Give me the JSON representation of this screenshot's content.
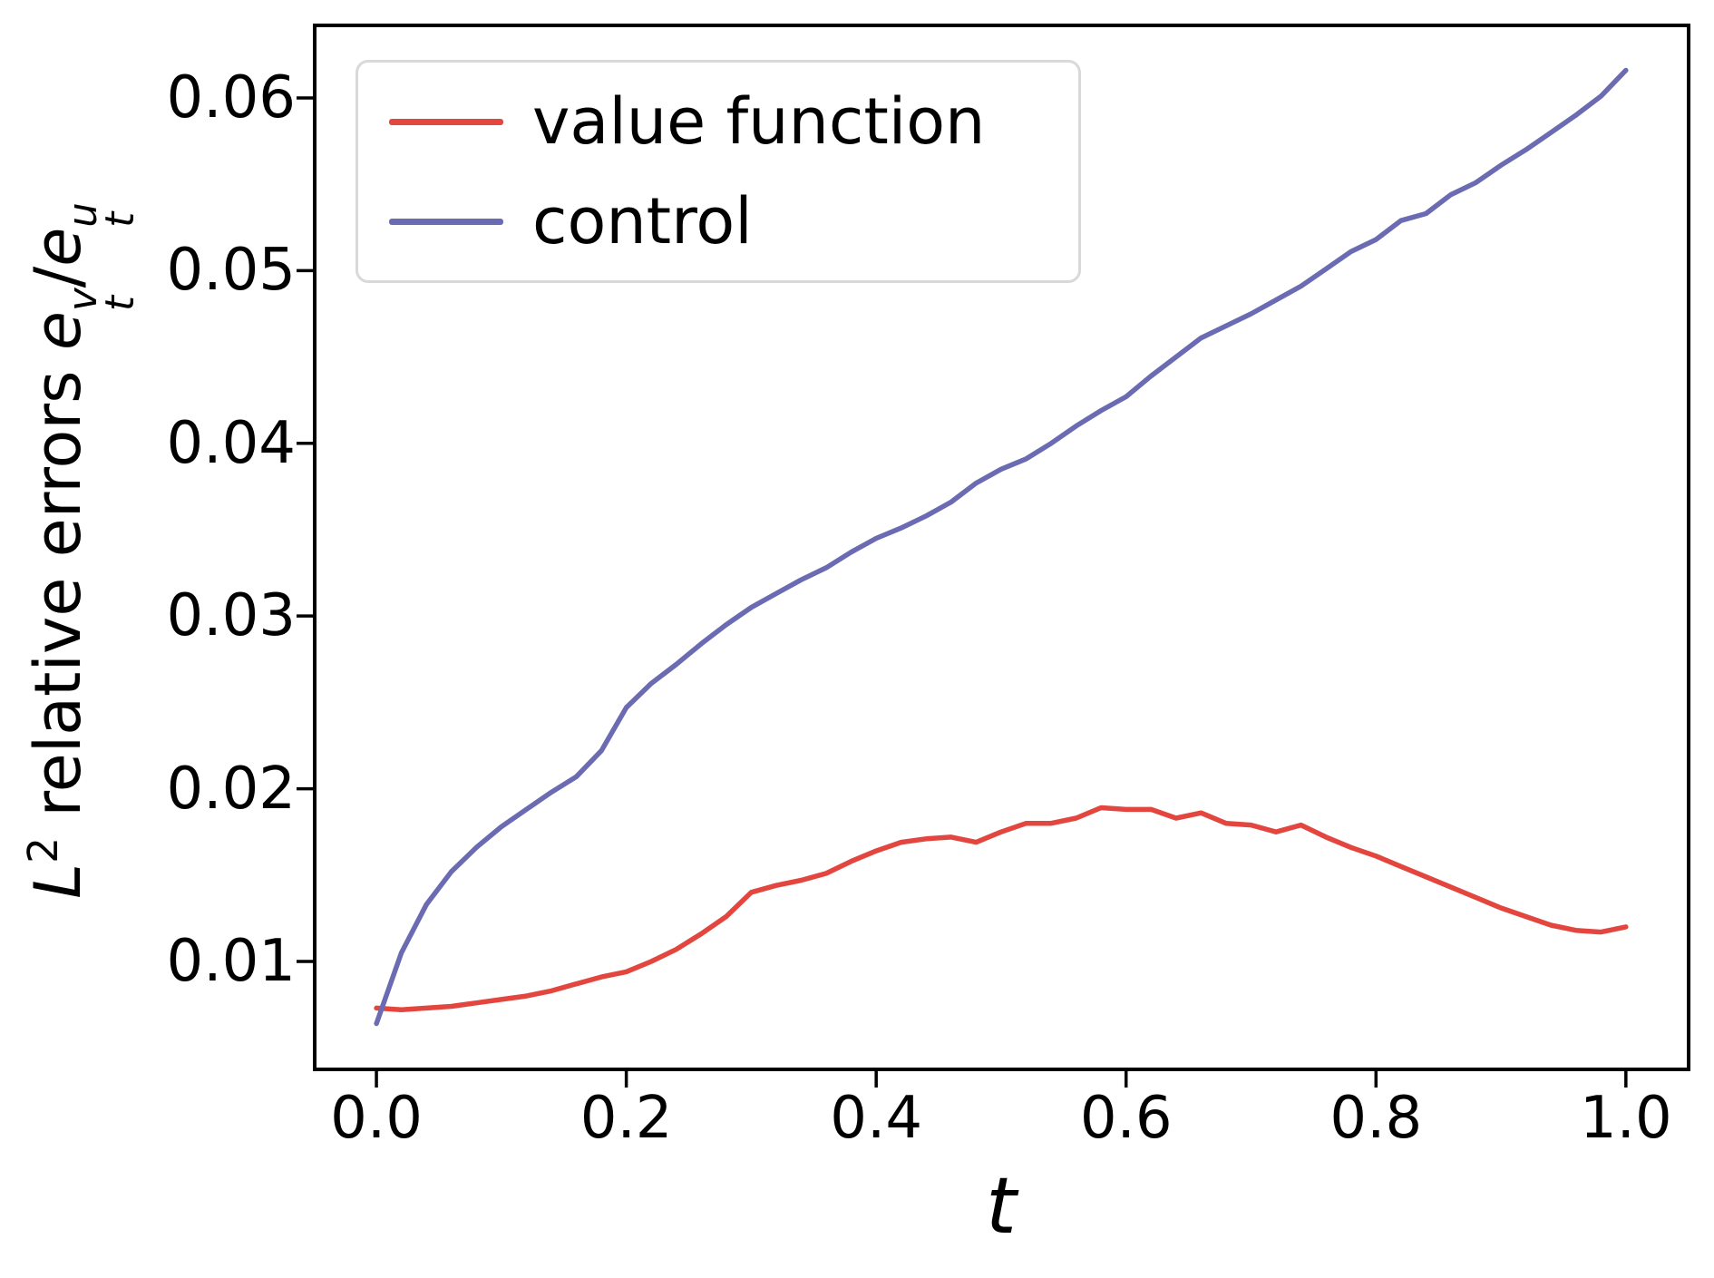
{
  "chart_data": {
    "type": "line",
    "title": "",
    "xlabel": "t",
    "ylabel": "L2 relative errors e_t^v/e_t^u",
    "ylabel_parts": {
      "L": "L",
      "exponent": "2",
      "words": " relative errors ",
      "e1": "e",
      "sup1": "v",
      "sub1": "t",
      "slash": "/",
      "e2": "e",
      "sup2": "u",
      "sub2": "t"
    },
    "xlim": [
      -0.0494,
      1.0502
    ],
    "ylim": [
      0.00375,
      0.0642
    ],
    "grid": false,
    "legend_position": "upper left",
    "xticks": [
      "0.0",
      "0.2",
      "0.4",
      "0.6",
      "0.8",
      "1.0"
    ],
    "xtick_values": [
      0.0,
      0.2,
      0.4,
      0.6,
      0.8,
      1.0
    ],
    "yticks": [
      "0.01",
      "0.02",
      "0.03",
      "0.04",
      "0.05",
      "0.06"
    ],
    "ytick_values": [
      0.01,
      0.02,
      0.03,
      0.04,
      0.05,
      0.06
    ],
    "x": [
      0.0,
      0.02,
      0.04,
      0.06,
      0.08,
      0.1,
      0.12,
      0.14,
      0.16,
      0.18,
      0.2,
      0.22,
      0.24,
      0.26,
      0.28,
      0.3,
      0.32,
      0.34,
      0.36,
      0.38,
      0.4,
      0.42,
      0.44,
      0.46,
      0.48,
      0.5,
      0.52,
      0.54,
      0.56,
      0.58,
      0.6,
      0.62,
      0.64,
      0.66,
      0.68,
      0.7,
      0.72,
      0.74,
      0.76,
      0.78,
      0.8,
      0.82,
      0.84,
      0.86,
      0.88,
      0.9,
      0.92,
      0.94,
      0.96,
      0.98,
      1.0
    ],
    "series": [
      {
        "name": "value function",
        "color": "#e2463f",
        "values": [
          0.0073,
          0.0072,
          0.0073,
          0.0074,
          0.0076,
          0.0078,
          0.008,
          0.0083,
          0.0087,
          0.0091,
          0.0094,
          0.01,
          0.0107,
          0.0116,
          0.0126,
          0.014,
          0.0144,
          0.0147,
          0.0151,
          0.0158,
          0.0164,
          0.0169,
          0.0171,
          0.0172,
          0.0169,
          0.0175,
          0.018,
          0.018,
          0.0183,
          0.0189,
          0.0188,
          0.0188,
          0.0183,
          0.0186,
          0.018,
          0.0179,
          0.0175,
          0.0179,
          0.0172,
          0.0166,
          0.0161,
          0.0155,
          0.0149,
          0.0143,
          0.0137,
          0.0131,
          0.0126,
          0.0121,
          0.0118,
          0.0117,
          0.012
        ]
      },
      {
        "name": "control",
        "color": "#6a6bb2",
        "values": [
          0.0064,
          0.0105,
          0.0133,
          0.0152,
          0.0166,
          0.0178,
          0.0188,
          0.0198,
          0.0207,
          0.0222,
          0.0247,
          0.0261,
          0.0272,
          0.0284,
          0.0295,
          0.0305,
          0.0313,
          0.0321,
          0.0328,
          0.0337,
          0.0345,
          0.0351,
          0.0358,
          0.0366,
          0.0377,
          0.0385,
          0.0391,
          0.04,
          0.041,
          0.0419,
          0.0427,
          0.0439,
          0.045,
          0.0461,
          0.0468,
          0.0475,
          0.0483,
          0.0491,
          0.0501,
          0.0511,
          0.0518,
          0.0529,
          0.0533,
          0.0544,
          0.0551,
          0.0561,
          0.057,
          0.058,
          0.059,
          0.0601,
          0.0616
        ]
      }
    ],
    "axis_color": "#000000",
    "spine_width": 4,
    "line_width": 5.5,
    "tick_length": 18
  }
}
